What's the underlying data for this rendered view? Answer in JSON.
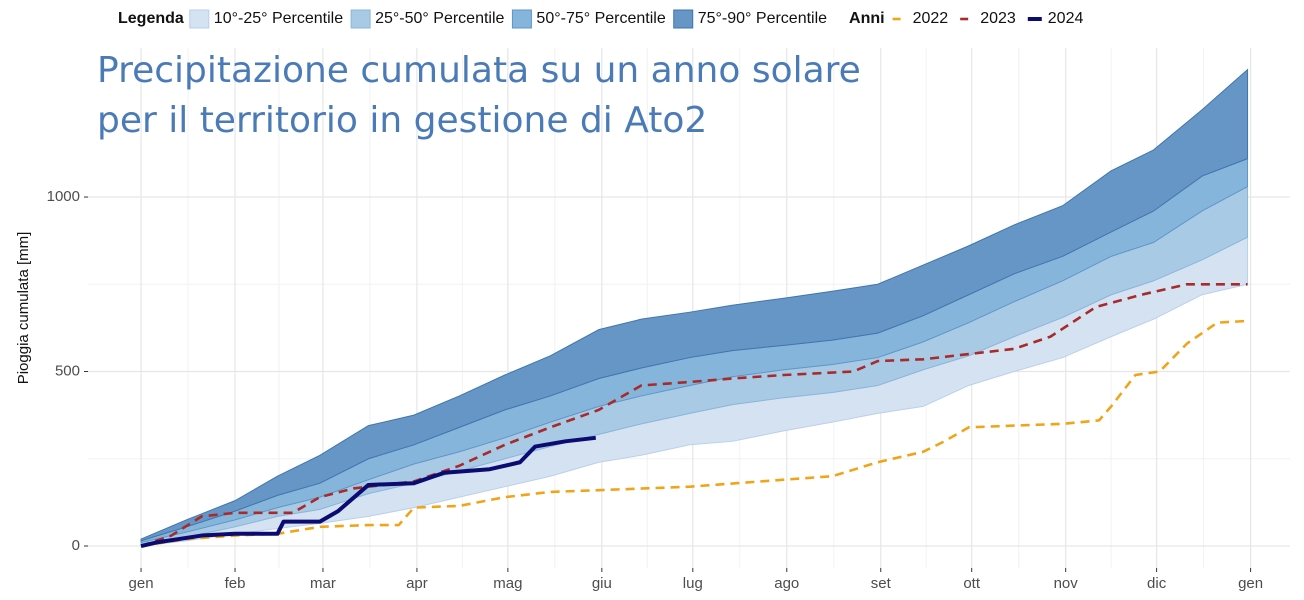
{
  "chart_data": {
    "type": "percentile-band",
    "title": [
      "Precipitazione cumulata su un anno solare",
      "per il territorio in gestione di Ato2"
    ],
    "ylabel": "Pioggia cumulata [mm]",
    "band_legend_title": "Legenda",
    "year_legend_title": "Anni",
    "x": [
      0,
      15,
      31,
      45,
      59,
      75,
      90,
      105,
      120,
      135,
      151,
      165,
      181,
      195,
      212,
      228,
      243,
      258,
      273,
      288,
      304,
      320,
      334,
      350,
      365
    ],
    "bands": [
      {
        "name": "10°-25° Percentile",
        "color": "#d4e2f2",
        "edge": "#b9d0ea",
        "low": [
          0,
          15,
          35,
          50,
          65,
          85,
          110,
          140,
          170,
          200,
          240,
          260,
          290,
          300,
          330,
          355,
          380,
          400,
          460,
          500,
          540,
          600,
          650,
          720,
          750
        ],
        "high": [
          5,
          25,
          55,
          85,
          105,
          150,
          180,
          215,
          250,
          285,
          320,
          350,
          380,
          405,
          425,
          440,
          460,
          505,
          545,
          600,
          655,
          720,
          760,
          820,
          885
        ]
      },
      {
        "name": "25°-50° Percentile",
        "color": "#a9cae5",
        "edge": "#8ab5db",
        "low": [
          5,
          25,
          55,
          85,
          105,
          150,
          180,
          215,
          250,
          285,
          320,
          350,
          380,
          405,
          425,
          440,
          460,
          505,
          545,
          600,
          655,
          720,
          760,
          820,
          885
        ],
        "high": [
          10,
          40,
          75,
          110,
          140,
          190,
          235,
          270,
          310,
          355,
          400,
          430,
          460,
          485,
          505,
          520,
          540,
          585,
          640,
          700,
          760,
          830,
          870,
          960,
          1030
        ]
      },
      {
        "name": "50°-75° Percentile",
        "color": "#86b5db",
        "edge": "#5f97c8",
        "low": [
          10,
          40,
          75,
          110,
          140,
          190,
          235,
          270,
          310,
          355,
          400,
          430,
          460,
          485,
          505,
          520,
          540,
          585,
          640,
          700,
          760,
          830,
          870,
          960,
          1030
        ],
        "high": [
          15,
          55,
          100,
          145,
          180,
          250,
          290,
          340,
          390,
          430,
          480,
          510,
          540,
          560,
          575,
          590,
          610,
          660,
          720,
          780,
          830,
          900,
          960,
          1060,
          1110
        ]
      },
      {
        "name": "75°-90° Percentile",
        "color": "#6696c6",
        "edge": "#3f76ad",
        "low": [
          15,
          55,
          100,
          145,
          180,
          250,
          290,
          340,
          390,
          430,
          480,
          510,
          540,
          560,
          575,
          590,
          610,
          660,
          720,
          780,
          830,
          900,
          960,
          1060,
          1110
        ],
        "high": [
          20,
          75,
          130,
          200,
          260,
          345,
          375,
          430,
          490,
          545,
          620,
          650,
          670,
          690,
          710,
          730,
          750,
          805,
          860,
          920,
          975,
          1075,
          1135,
          1250,
          1365
        ]
      }
    ],
    "years": [
      {
        "name": "2022",
        "color": "#f0a418",
        "dashed": true,
        "x": [
          0,
          15,
          31,
          45,
          59,
          75,
          85,
          90,
          105,
          120,
          135,
          151,
          181,
          212,
          228,
          243,
          258,
          265,
          273,
          288,
          304,
          316,
          320,
          328,
          336,
          345,
          355,
          365
        ],
        "values": [
          0,
          20,
          30,
          35,
          55,
          60,
          60,
          110,
          115,
          140,
          155,
          160,
          170,
          190,
          200,
          240,
          270,
          300,
          340,
          345,
          350,
          360,
          400,
          490,
          500,
          580,
          640,
          645
        ]
      },
      {
        "name": "2023",
        "color": "#a82a2a",
        "dashed": true,
        "x": [
          0,
          10,
          20,
          31,
          50,
          59,
          70,
          90,
          105,
          120,
          135,
          151,
          165,
          181,
          195,
          212,
          235,
          243,
          258,
          273,
          288,
          300,
          315,
          330,
          345,
          365
        ],
        "values": [
          0,
          30,
          85,
          95,
          95,
          140,
          165,
          185,
          230,
          290,
          340,
          390,
          460,
          470,
          480,
          490,
          500,
          530,
          535,
          550,
          565,
          600,
          685,
          720,
          750,
          750
        ]
      },
      {
        "name": "2024",
        "color": "#0b0b72",
        "dashed": false,
        "x": [
          0,
          5,
          20,
          31,
          45,
          47,
          59,
          65,
          75,
          90,
          100,
          115,
          125,
          130,
          140,
          150
        ],
        "values": [
          0,
          10,
          30,
          35,
          35,
          70,
          70,
          100,
          175,
          180,
          210,
          220,
          240,
          285,
          300,
          310
        ]
      }
    ],
    "xlim": [
      -17.5,
      379
    ],
    "ylim": [
      -63,
      1427
    ],
    "xticks": [
      {
        "value": 0,
        "label": "gen"
      },
      {
        "value": 31,
        "label": "feb"
      },
      {
        "value": 60,
        "label": "mar"
      },
      {
        "value": 91,
        "label": "apr"
      },
      {
        "value": 121,
        "label": "mag"
      },
      {
        "value": 152,
        "label": "giu"
      },
      {
        "value": 182,
        "label": "lug"
      },
      {
        "value": 213,
        "label": "ago"
      },
      {
        "value": 244,
        "label": "set"
      },
      {
        "value": 274,
        "label": "ott"
      },
      {
        "value": 305,
        "label": "nov"
      },
      {
        "value": 335,
        "label": "dic"
      },
      {
        "value": 366,
        "label": "gen"
      }
    ],
    "yticks": [
      0,
      500,
      1000
    ],
    "grid": true
  }
}
